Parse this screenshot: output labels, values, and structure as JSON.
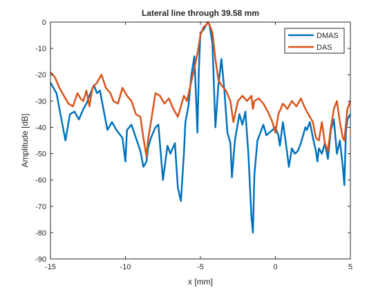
{
  "chart_data": {
    "type": "line",
    "title": "Lateral line through 39.58 mm",
    "xlabel": "x [mm]",
    "ylabel": "Amplitude [dB]",
    "xlim": [
      -15,
      5
    ],
    "ylim": [
      -90,
      0
    ],
    "xticks": [
      -15,
      -10,
      -5,
      0,
      5
    ],
    "yticks": [
      0,
      -10,
      -20,
      -30,
      -40,
      -50,
      -60,
      -70,
      -80,
      -90
    ],
    "grid": false,
    "legend_position": "top-right",
    "series": [
      {
        "name": "DMAS",
        "color": "#0072BD",
        "x": [
          -15.0,
          -14.6,
          -14.3,
          -14.0,
          -13.7,
          -13.4,
          -13.1,
          -12.8,
          -12.6,
          -12.4,
          -12.1,
          -11.9,
          -11.7,
          -11.5,
          -11.2,
          -10.9,
          -10.6,
          -10.2,
          -10.0,
          -9.9,
          -9.6,
          -9.3,
          -9.0,
          -8.8,
          -8.6,
          -8.5,
          -8.3,
          -8.0,
          -7.8,
          -7.5,
          -7.2,
          -7.0,
          -6.7,
          -6.5,
          -6.3,
          -6.1,
          -6.0,
          -5.8,
          -5.6,
          -5.4,
          -5.2,
          -5.1,
          -5.0,
          -4.8,
          -4.6,
          -4.5,
          -4.4,
          -4.2,
          -4.0,
          -3.8,
          -3.6,
          -3.4,
          -3.2,
          -3.0,
          -2.9,
          -2.7,
          -2.4,
          -2.2,
          -2.0,
          -1.8,
          -1.6,
          -1.5,
          -1.4,
          -1.2,
          -1.0,
          -0.8,
          -0.6,
          -0.4,
          -0.2,
          0.0,
          0.2,
          0.3,
          0.5,
          0.7,
          0.9,
          1.1,
          1.3,
          1.5,
          1.7,
          1.9,
          2.0,
          2.1,
          2.3,
          2.5,
          2.7,
          2.8,
          2.9,
          3.1,
          3.3,
          3.5,
          3.7,
          3.9,
          4.1,
          4.3,
          4.5,
          4.6,
          4.7,
          4.8,
          5.0
        ],
        "y": [
          -23,
          -27,
          -36,
          -45,
          -35,
          -34,
          -37,
          -33,
          -31,
          -28,
          -24,
          -27,
          -26,
          -32,
          -41,
          -38,
          -41,
          -44,
          -53,
          -41,
          -39,
          -44,
          -49,
          -55,
          -53,
          -48,
          -44,
          -40,
          -39,
          -60,
          -47,
          -50,
          -46,
          -63,
          -68,
          -50,
          -38,
          -32,
          -20,
          -13,
          -42,
          -18,
          -4,
          -3,
          -1,
          0,
          -1,
          -8,
          -40,
          -24,
          -14,
          -26,
          -42,
          -46,
          -59,
          -45,
          -35,
          -39,
          -34,
          -50,
          -74,
          -80,
          -58,
          -45,
          -42,
          -39,
          -43,
          -42,
          -41,
          -40,
          -43,
          -47,
          -38,
          -46,
          -55,
          -48,
          -50,
          -49,
          -46,
          -42,
          -40,
          -41,
          -38,
          -44,
          -49,
          -53,
          -48,
          -50,
          -46,
          -52,
          -41,
          -37,
          -50,
          -45,
          -55,
          -62,
          -42,
          -37,
          -35
        ]
      },
      {
        "name": "DAS",
        "color": "#D95319",
        "x": [
          -15.0,
          -14.7,
          -14.4,
          -14.1,
          -13.8,
          -13.5,
          -13.2,
          -13.0,
          -12.8,
          -12.6,
          -12.4,
          -12.2,
          -11.9,
          -11.6,
          -11.3,
          -11.0,
          -10.8,
          -10.5,
          -10.2,
          -9.9,
          -9.6,
          -9.3,
          -9.0,
          -8.8,
          -8.6,
          -8.5,
          -8.3,
          -8.0,
          -7.7,
          -7.4,
          -7.1,
          -6.8,
          -6.5,
          -6.3,
          -6.1,
          -5.9,
          -5.7,
          -5.5,
          -5.2,
          -5.0,
          -4.8,
          -4.6,
          -4.5,
          -4.4,
          -4.2,
          -4.0,
          -3.8,
          -3.6,
          -3.3,
          -3.0,
          -2.8,
          -2.5,
          -2.2,
          -1.9,
          -1.6,
          -1.5,
          -1.4,
          -1.1,
          -0.8,
          -0.5,
          -0.2,
          0.0,
          0.2,
          0.5,
          0.8,
          1.1,
          1.4,
          1.7,
          2.0,
          2.3,
          2.5,
          2.7,
          2.9,
          3.1,
          3.3,
          3.5,
          3.7,
          3.9,
          4.1,
          4.3,
          4.5,
          4.6,
          4.8,
          5.0
        ],
        "y": [
          -19,
          -21,
          -25,
          -28,
          -31,
          -32,
          -27,
          -29,
          -30,
          -26,
          -32,
          -25,
          -23,
          -20,
          -25,
          -27,
          -30,
          -31,
          -25,
          -28,
          -30,
          -35,
          -36,
          -44,
          -51,
          -45,
          -38,
          -27,
          -28,
          -31,
          -29,
          -33,
          -36,
          -32,
          -28,
          -30,
          -25,
          -20,
          -12,
          -5,
          -2,
          -1,
          0,
          -1,
          -4,
          -14,
          -22,
          -24,
          -26,
          -30,
          -38,
          -30,
          -28,
          -30,
          -28,
          -33,
          -30,
          -29,
          -31,
          -34,
          -38,
          -42,
          -35,
          -31,
          -33,
          -30,
          -32,
          -29,
          -33,
          -36,
          -38,
          -44,
          -45,
          -38,
          -46,
          -49,
          -40,
          -33,
          -30,
          -38,
          -44,
          -45,
          -33,
          -30
        ]
      }
    ]
  }
}
